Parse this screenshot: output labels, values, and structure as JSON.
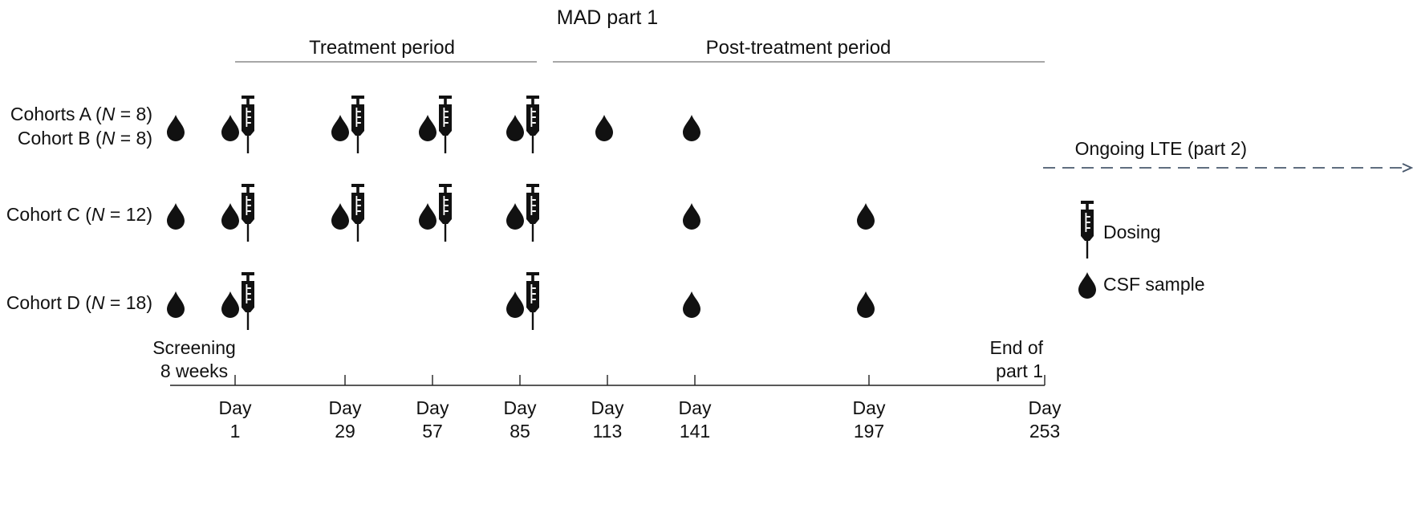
{
  "title": "MAD part 1",
  "periods": {
    "treatment": "Treatment period",
    "post_treatment": "Post-treatment period"
  },
  "cohorts": [
    {
      "id": "AB",
      "lines": [
        {
          "prefix": "Cohorts A (",
          "n": "N",
          "suffix": " = 8)"
        },
        {
          "prefix": "Cohort B (",
          "n": "N",
          "suffix": " = 8)"
        }
      ]
    },
    {
      "id": "C",
      "lines": [
        {
          "prefix": "Cohort C (",
          "n": "N",
          "suffix": " = 12)"
        }
      ]
    },
    {
      "id": "D",
      "lines": [
        {
          "prefix": "Cohort D (",
          "n": "N",
          "suffix": " = 18)"
        }
      ]
    }
  ],
  "timeline": {
    "screening": [
      "Screening",
      "8 weeks"
    ],
    "end": [
      "End of",
      "part 1"
    ],
    "days": [
      {
        "label": "Day",
        "value": "1"
      },
      {
        "label": "Day",
        "value": "29"
      },
      {
        "label": "Day",
        "value": "57"
      },
      {
        "label": "Day",
        "value": "85"
      },
      {
        "label": "Day",
        "value": "113"
      },
      {
        "label": "Day",
        "value": "141"
      },
      {
        "label": "Day",
        "value": "197"
      },
      {
        "label": "Day",
        "value": "253"
      }
    ]
  },
  "schedule": {
    "AB": {
      "screening_csf": true,
      "dosing_days": [
        "1",
        "29",
        "57",
        "85"
      ],
      "csf_days": [
        "1",
        "29",
        "57",
        "85",
        "113",
        "141"
      ]
    },
    "C": {
      "screening_csf": true,
      "dosing_days": [
        "1",
        "29",
        "57",
        "85"
      ],
      "csf_days": [
        "1",
        "29",
        "57",
        "85",
        "141",
        "197"
      ]
    },
    "D": {
      "screening_csf": true,
      "dosing_days": [
        "1",
        "85"
      ],
      "csf_days": [
        "1",
        "85",
        "141",
        "197"
      ]
    }
  },
  "lte": "Ongoing LTE (part 2)",
  "legend": {
    "dosing": "Dosing",
    "csf": "CSF sample"
  },
  "icons": {
    "dosing": "syringe-icon",
    "csf": "droplet-icon"
  }
}
